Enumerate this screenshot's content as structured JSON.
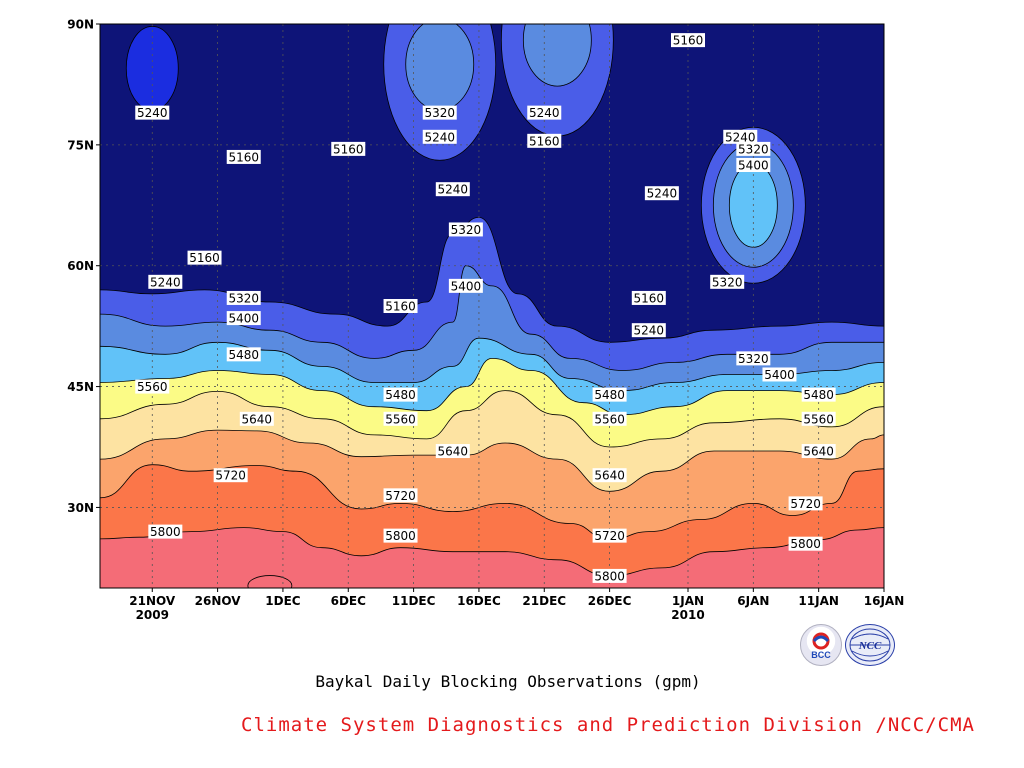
{
  "chart_data": {
    "type": "heatmap",
    "subtype": "filled-contour (time-latitude Hovmoller)",
    "title": "Baykal Daily Blocking Observations (gpm)",
    "credit": "Climate System Diagnostics and Prediction Division /NCC/CMA",
    "y_axis": {
      "unit": "latitude",
      "range": [
        20,
        90
      ],
      "ticks": [
        "30N",
        "45N",
        "60N",
        "75N",
        "90N"
      ],
      "tick_values": [
        30,
        45,
        60,
        75,
        90
      ]
    },
    "x_axis": {
      "unit": "date",
      "range": [
        "2009-11-17",
        "2010-01-16"
      ],
      "ticks": [
        {
          "date": "2009-11-21",
          "label": "21NOV",
          "sub": "2009"
        },
        {
          "date": "2009-11-26",
          "label": "26NOV",
          "sub": ""
        },
        {
          "date": "2009-12-01",
          "label": "1DEC",
          "sub": ""
        },
        {
          "date": "2009-12-06",
          "label": "6DEC",
          "sub": ""
        },
        {
          "date": "2009-12-11",
          "label": "11DEC",
          "sub": ""
        },
        {
          "date": "2009-12-16",
          "label": "16DEC",
          "sub": ""
        },
        {
          "date": "2009-12-21",
          "label": "21DEC",
          "sub": ""
        },
        {
          "date": "2009-12-26",
          "label": "26DEC",
          "sub": ""
        },
        {
          "date": "2010-01-01",
          "label": "1JAN",
          "sub": "2010"
        },
        {
          "date": "2010-01-06",
          "label": "6JAN",
          "sub": ""
        },
        {
          "date": "2010-01-11",
          "label": "11JAN",
          "sub": ""
        },
        {
          "date": "2010-01-16",
          "label": "16JAN",
          "sub": ""
        }
      ]
    },
    "grid": true,
    "contour_levels": [
      5160,
      5240,
      5320,
      5400,
      5480,
      5560,
      5640,
      5720,
      5800,
      5880
    ],
    "fill_colors": [
      "#0e1478",
      "#1b2de0",
      "#4a5de8",
      "#5a8be0",
      "#61c2f8",
      "#fbfb86",
      "#fde3a2",
      "#fba46c",
      "#fb7649",
      "#f46c77",
      "#e41a1c"
    ],
    "contours": [
      {
        "level": 5800,
        "points": [
          [
            "2009-11-17",
            26.1
          ],
          [
            "2009-11-20",
            26.3
          ],
          [
            "2009-11-24",
            27.0
          ],
          [
            "2009-11-28",
            27.5
          ],
          [
            "2009-12-01",
            27.0
          ],
          [
            "2009-12-04",
            25.0
          ],
          [
            "2009-12-07",
            24.0
          ],
          [
            "2009-12-10",
            25.0
          ],
          [
            "2009-12-14",
            24.5
          ],
          [
            "2009-12-18",
            24.5
          ],
          [
            "2009-12-22",
            23.5
          ],
          [
            "2009-12-26",
            21.5
          ],
          [
            "2009-12-30",
            22.5
          ],
          [
            "2010-01-03",
            24.5
          ],
          [
            "2010-01-07",
            25.0
          ],
          [
            "2010-01-11",
            26.0
          ],
          [
            "2010-01-14",
            27.2
          ],
          [
            "2010-01-16",
            27.5
          ]
        ]
      },
      {
        "level": 5720,
        "points": [
          [
            "2009-11-17",
            31.2
          ],
          [
            "2009-11-21",
            35.3
          ],
          [
            "2009-11-24",
            34.5
          ],
          [
            "2009-11-29",
            35.2
          ],
          [
            "2009-12-02",
            34.5
          ],
          [
            "2009-12-07",
            29.8
          ],
          [
            "2009-12-10",
            30.5
          ],
          [
            "2009-12-14",
            29.5
          ],
          [
            "2009-12-18",
            30.5
          ],
          [
            "2009-12-23",
            28.0
          ],
          [
            "2009-12-26",
            26.0
          ],
          [
            "2009-12-29",
            27.0
          ],
          [
            "2010-01-02",
            28.5
          ],
          [
            "2010-01-06",
            30.5
          ],
          [
            "2010-01-09",
            29.0
          ],
          [
            "2010-01-12",
            30.5
          ],
          [
            "2010-01-14",
            34.5
          ],
          [
            "2010-01-16",
            34.8
          ]
        ]
      },
      {
        "level": 5640,
        "points": [
          [
            "2009-11-17",
            36.0
          ],
          [
            "2009-11-22",
            38.5
          ],
          [
            "2009-11-26",
            39.6
          ],
          [
            "2009-11-29",
            39.5
          ],
          [
            "2009-12-03",
            38.0
          ],
          [
            "2009-12-07",
            36.3
          ],
          [
            "2009-12-11",
            36.5
          ],
          [
            "2009-12-15",
            36.5
          ],
          [
            "2009-12-18",
            38.0
          ],
          [
            "2009-12-22",
            36.0
          ],
          [
            "2009-12-26",
            32.0
          ],
          [
            "2009-12-30",
            34.5
          ],
          [
            "2010-01-03",
            37.0
          ],
          [
            "2010-01-08",
            37.0
          ],
          [
            "2010-01-12",
            36.0
          ],
          [
            "2010-01-15",
            38.5
          ],
          [
            "2010-01-16",
            39.0
          ]
        ]
      },
      {
        "level": 5560,
        "points": [
          [
            "2009-11-17",
            41.0
          ],
          [
            "2009-11-22",
            42.8
          ],
          [
            "2009-11-26",
            44.4
          ],
          [
            "2009-11-30",
            42.5
          ],
          [
            "2009-12-04",
            41.0
          ],
          [
            "2009-12-08",
            39.0
          ],
          [
            "2009-12-12",
            38.5
          ],
          [
            "2009-12-15",
            42.0
          ],
          [
            "2009-12-18",
            44.5
          ],
          [
            "2009-12-22",
            41.5
          ],
          [
            "2009-12-26",
            37.5
          ],
          [
            "2009-12-30",
            38.5
          ],
          [
            "2010-01-03",
            40.5
          ],
          [
            "2010-01-08",
            41.0
          ],
          [
            "2010-01-12",
            40.0
          ],
          [
            "2010-01-16",
            42.5
          ]
        ]
      },
      {
        "level": 5480,
        "points": [
          [
            "2009-11-17",
            45.5
          ],
          [
            "2009-11-22",
            46.0
          ],
          [
            "2009-11-26",
            47.0
          ],
          [
            "2009-11-30",
            46.5
          ],
          [
            "2009-12-04",
            44.5
          ],
          [
            "2009-12-08",
            42.5
          ],
          [
            "2009-12-12",
            42.0
          ],
          [
            "2009-12-15",
            45.0
          ],
          [
            "2009-12-17",
            48.5
          ],
          [
            "2009-12-20",
            47.0
          ],
          [
            "2009-12-24",
            43.0
          ],
          [
            "2009-12-27",
            41.5
          ],
          [
            "2009-12-31",
            42.5
          ],
          [
            "2010-01-04",
            44.5
          ],
          [
            "2010-01-08",
            44.5
          ],
          [
            "2010-01-12",
            44.0
          ],
          [
            "2010-01-16",
            45.5
          ]
        ]
      },
      {
        "level": 5400,
        "points": [
          [
            "2009-11-17",
            50.0
          ],
          [
            "2009-11-22",
            49.0
          ],
          [
            "2009-11-26",
            50.5
          ],
          [
            "2009-11-30",
            49.5
          ],
          [
            "2009-12-04",
            47.5
          ],
          [
            "2009-12-08",
            45.5
          ],
          [
            "2009-12-11",
            45.5
          ],
          [
            "2009-12-14",
            47.5
          ],
          [
            "2009-12-16",
            51.0
          ],
          [
            "2009-12-20",
            49.0
          ],
          [
            "2009-12-23",
            46.0
          ],
          [
            "2009-12-27",
            44.5
          ],
          [
            "2009-12-31",
            45.5
          ],
          [
            "2010-01-04",
            46.5
          ],
          [
            "2010-01-08",
            46.5
          ],
          [
            "2010-01-12",
            47.0
          ],
          [
            "2010-01-16",
            48.0
          ]
        ]
      },
      {
        "level": 5320,
        "points": [
          [
            "2009-11-17",
            54.0
          ],
          [
            "2009-11-22",
            52.5
          ],
          [
            "2009-11-26",
            53.0
          ],
          [
            "2009-11-30",
            52.0
          ],
          [
            "2009-12-04",
            50.5
          ],
          [
            "2009-12-08",
            48.5
          ],
          [
            "2009-12-11",
            49.5
          ],
          [
            "2009-12-14",
            53.0
          ],
          [
            "2009-12-15",
            60.0
          ],
          [
            "2009-12-17",
            57.5
          ],
          [
            "2009-12-20",
            51.5
          ],
          [
            "2009-12-23",
            48.5
          ],
          [
            "2009-12-27",
            47.0
          ],
          [
            "2009-12-31",
            48.0
          ],
          [
            "2010-01-04",
            49.0
          ],
          [
            "2010-01-08",
            49.0
          ],
          [
            "2010-01-12",
            50.5
          ],
          [
            "2010-01-16",
            50.5
          ]
        ]
      },
      {
        "level": 5240,
        "points": [
          [
            "2009-11-17",
            57.0
          ],
          [
            "2009-11-21",
            56.5
          ],
          [
            "2009-11-25",
            57.0
          ],
          [
            "2009-11-30",
            55.5
          ],
          [
            "2009-12-05",
            54.0
          ],
          [
            "2009-12-09",
            52.5
          ],
          [
            "2009-12-12",
            55.5
          ],
          [
            "2009-12-14",
            64.0
          ],
          [
            "2009-12-16",
            66.0
          ],
          [
            "2009-12-19",
            56.5
          ],
          [
            "2009-12-22",
            52.5
          ],
          [
            "2009-12-26",
            50.5
          ],
          [
            "2009-12-30",
            51.0
          ],
          [
            "2010-01-03",
            52.0
          ],
          [
            "2010-01-08",
            52.5
          ],
          [
            "2010-01-12",
            53.0
          ],
          [
            "2010-01-16",
            52.5
          ]
        ]
      }
    ],
    "regions": [
      {
        "level": 5240,
        "center": [
          "2009-11-21",
          84.5
        ]
      },
      {
        "level": 5400,
        "center": [
          "2009-12-13",
          85.0
        ]
      },
      {
        "level": 5400,
        "center": [
          "2009-12-22",
          88.0
        ]
      },
      {
        "level": 5400,
        "center": [
          "2010-01-06",
          67.5
        ]
      },
      {
        "level": 5880,
        "center": [
          "2009-11-30",
          20.3
        ]
      }
    ],
    "contour_labels": [
      {
        "date": "2009-11-21",
        "lat": 79.0,
        "text": "5240"
      },
      {
        "date": "2009-11-28",
        "lat": 73.5,
        "text": "5160"
      },
      {
        "date": "2009-11-25",
        "lat": 61.0,
        "text": "5160"
      },
      {
        "date": "2009-11-22",
        "lat": 58.0,
        "text": "5240"
      },
      {
        "date": "2009-11-28",
        "lat": 56.0,
        "text": "5320"
      },
      {
        "date": "2009-11-28",
        "lat": 53.5,
        "text": "5400"
      },
      {
        "date": "2009-11-28",
        "lat": 49.0,
        "text": "5480"
      },
      {
        "date": "2009-11-21",
        "lat": 45.0,
        "text": "5560"
      },
      {
        "date": "2009-11-29",
        "lat": 41.0,
        "text": "5640"
      },
      {
        "date": "2009-11-27",
        "lat": 34.0,
        "text": "5720"
      },
      {
        "date": "2009-11-22",
        "lat": 27.0,
        "text": "5800"
      },
      {
        "date": "2009-12-06",
        "lat": 74.5,
        "text": "5160"
      },
      {
        "date": "2009-12-13",
        "lat": 79.0,
        "text": "5320"
      },
      {
        "date": "2009-12-13",
        "lat": 76.0,
        "text": "5240"
      },
      {
        "date": "2009-12-14",
        "lat": 69.5,
        "text": "5240"
      },
      {
        "date": "2009-12-15",
        "lat": 64.5,
        "text": "5320"
      },
      {
        "date": "2009-12-15",
        "lat": 57.5,
        "text": "5400"
      },
      {
        "date": "2009-12-10",
        "lat": 55.0,
        "text": "5160"
      },
      {
        "date": "2009-12-10",
        "lat": 44.0,
        "text": "5480"
      },
      {
        "date": "2009-12-10",
        "lat": 41.0,
        "text": "5560"
      },
      {
        "date": "2009-12-14",
        "lat": 37.0,
        "text": "5640"
      },
      {
        "date": "2009-12-10",
        "lat": 31.5,
        "text": "5720"
      },
      {
        "date": "2009-12-10",
        "lat": 26.5,
        "text": "5800"
      },
      {
        "date": "2009-12-21",
        "lat": 79.0,
        "text": "5240"
      },
      {
        "date": "2009-12-21",
        "lat": 75.5,
        "text": "5160"
      },
      {
        "date": "2009-12-30",
        "lat": 69.0,
        "text": "5240"
      },
      {
        "date": "2010-01-01",
        "lat": 88.0,
        "text": "5160"
      },
      {
        "date": "2009-12-29",
        "lat": 56.0,
        "text": "5160"
      },
      {
        "date": "2009-12-29",
        "lat": 52.0,
        "text": "5240"
      },
      {
        "date": "2009-12-26",
        "lat": 44.0,
        "text": "5480"
      },
      {
        "date": "2009-12-26",
        "lat": 41.0,
        "text": "5560"
      },
      {
        "date": "2009-12-26",
        "lat": 34.0,
        "text": "5640"
      },
      {
        "date": "2009-12-26",
        "lat": 26.5,
        "text": "5720"
      },
      {
        "date": "2009-12-26",
        "lat": 21.5,
        "text": "5800"
      },
      {
        "date": "2010-01-05",
        "lat": 76.0,
        "text": "5240"
      },
      {
        "date": "2010-01-06",
        "lat": 74.5,
        "text": "5320"
      },
      {
        "date": "2010-01-06",
        "lat": 72.5,
        "text": "5400"
      },
      {
        "date": "2010-01-04",
        "lat": 58.0,
        "text": "5320"
      },
      {
        "date": "2010-01-06",
        "lat": 48.5,
        "text": "5320"
      },
      {
        "date": "2010-01-08",
        "lat": 46.5,
        "text": "5400"
      },
      {
        "date": "2010-01-11",
        "lat": 44.0,
        "text": "5480"
      },
      {
        "date": "2010-01-11",
        "lat": 41.0,
        "text": "5560"
      },
      {
        "date": "2010-01-11",
        "lat": 37.0,
        "text": "5640"
      },
      {
        "date": "2010-01-10",
        "lat": 30.5,
        "text": "5720"
      },
      {
        "date": "2010-01-10",
        "lat": 25.5,
        "text": "5800"
      }
    ]
  },
  "logos": {
    "left": "BCC",
    "right": "NCC"
  }
}
